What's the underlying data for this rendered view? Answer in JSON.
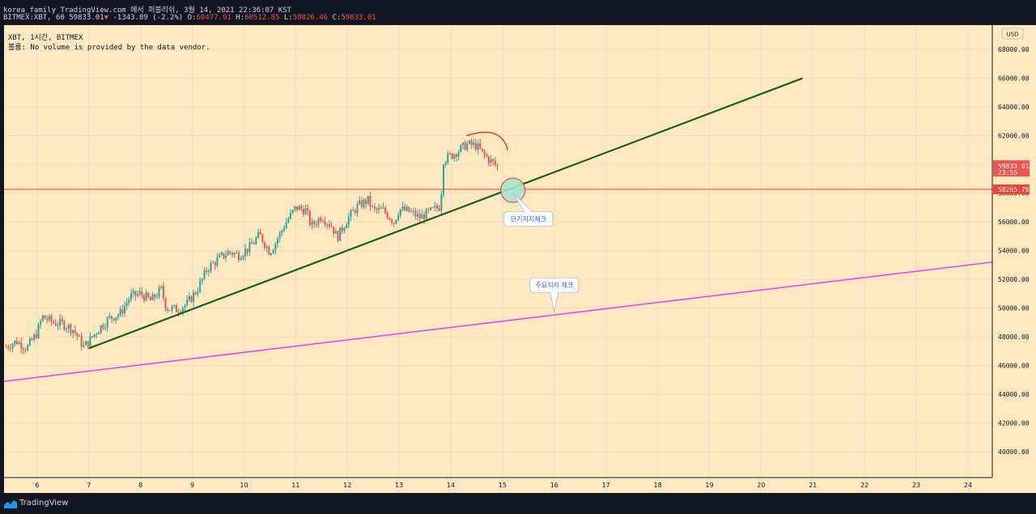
{
  "header": {
    "line1": "korea_family TradingView.com 에서 퍼블리쉬, 3월 14, 2021 22:36:07 KST",
    "symbol": "BITMEX:XBT, 60",
    "last": "59833.01",
    "arrow": "▼",
    "change": "-1343.89 (-2.2%)",
    "o_label": "O:",
    "o_val": "60477.91",
    "h_label": "H:",
    "h_val": "60512.85",
    "l_label": "L:",
    "l_val": "59826.46",
    "c_label": "C:",
    "c_val": "59833.01"
  },
  "legend": {
    "title": "XBT, 1시간, BITMEX",
    "volume_note": "볼륨: No volume is provided by the data vendor."
  },
  "footer": {
    "brand": "TradingView"
  },
  "colors": {
    "background": "#fde8c2",
    "up": "#26a69a",
    "down": "#ef5350",
    "trend_short": "#1b5e20",
    "trend_long": "#e040fb",
    "hline": "#f44336",
    "arc": "#e53935"
  },
  "chart_data": {
    "type": "candlestick",
    "currency": "USD",
    "x_ticks": [
      "6",
      "7",
      "8",
      "9",
      "10",
      "11",
      "12",
      "13",
      "14",
      "15",
      "16",
      "17",
      "18",
      "19",
      "20",
      "21",
      "22",
      "23",
      "24"
    ],
    "y_ticks": [
      "40000.00",
      "42000.00",
      "44000.00",
      "46000.00",
      "48000.00",
      "50000.00",
      "52000.00",
      "54000.00",
      "56000.00",
      "58000.00",
      "60000.00",
      "62000.00",
      "64000.00",
      "66000.00",
      "68000.00"
    ],
    "xlim": [
      5.36,
      24.47
    ],
    "ylim": [
      38200,
      69700
    ],
    "price_path": [
      [
        5.4,
        47300
      ],
      [
        5.6,
        47700
      ],
      [
        5.8,
        47200
      ],
      [
        6.0,
        48300
      ],
      [
        6.1,
        49400
      ],
      [
        6.3,
        49000
      ],
      [
        6.5,
        48900
      ],
      [
        6.7,
        48500
      ],
      [
        6.9,
        47300
      ],
      [
        7.0,
        47700
      ],
      [
        7.2,
        48600
      ],
      [
        7.4,
        49300
      ],
      [
        7.6,
        49600
      ],
      [
        7.8,
        50800
      ],
      [
        8.0,
        51000
      ],
      [
        8.2,
        50500
      ],
      [
        8.4,
        51300
      ],
      [
        8.5,
        50000
      ],
      [
        8.7,
        49900
      ],
      [
        8.9,
        50300
      ],
      [
        9.1,
        51300
      ],
      [
        9.3,
        52800
      ],
      [
        9.5,
        53400
      ],
      [
        9.7,
        53900
      ],
      [
        9.9,
        53700
      ],
      [
        10.1,
        54200
      ],
      [
        10.3,
        55100
      ],
      [
        10.5,
        53900
      ],
      [
        10.6,
        54500
      ],
      [
        10.8,
        55900
      ],
      [
        11.0,
        57000
      ],
      [
        11.2,
        56800
      ],
      [
        11.3,
        55700
      ],
      [
        11.5,
        56400
      ],
      [
        11.7,
        55700
      ],
      [
        11.8,
        54900
      ],
      [
        12.0,
        56200
      ],
      [
        12.2,
        57100
      ],
      [
        12.4,
        57500
      ],
      [
        12.5,
        56800
      ],
      [
        12.7,
        56800
      ],
      [
        12.9,
        56000
      ],
      [
        13.0,
        56900
      ],
      [
        13.2,
        56700
      ],
      [
        13.4,
        56300
      ],
      [
        13.6,
        56700
      ],
      [
        13.8,
        57100
      ],
      [
        13.85,
        60300
      ],
      [
        14.0,
        60600
      ],
      [
        14.2,
        61100
      ],
      [
        14.3,
        61400
      ],
      [
        14.5,
        61300
      ],
      [
        14.6,
        60800
      ],
      [
        14.75,
        60300
      ],
      [
        14.9,
        59833
      ]
    ],
    "last_price": "59833.01",
    "last_time": "23:55",
    "horizontal_line": "58265.78",
    "trendlines": [
      {
        "role": "short-term support",
        "from": [
          7.0,
          47200
        ],
        "to": [
          20.8,
          66000
        ]
      },
      {
        "role": "major support",
        "from": [
          5.36,
          44900
        ],
        "to": [
          24.47,
          53200
        ]
      }
    ],
    "arc": {
      "from": [
        14.3,
        62000
      ],
      "to": [
        15.1,
        61000
      ]
    },
    "circle": {
      "center": [
        15.2,
        58200
      ]
    },
    "callouts": [
      {
        "text": "단기지지체크",
        "at": [
          15.5,
          56200
        ],
        "pointer": [
          15.2,
          58000
        ]
      },
      {
        "text": "주요지지 체크",
        "at": [
          16.0,
          51600
        ],
        "pointer": [
          16.0,
          49700
        ]
      }
    ]
  }
}
